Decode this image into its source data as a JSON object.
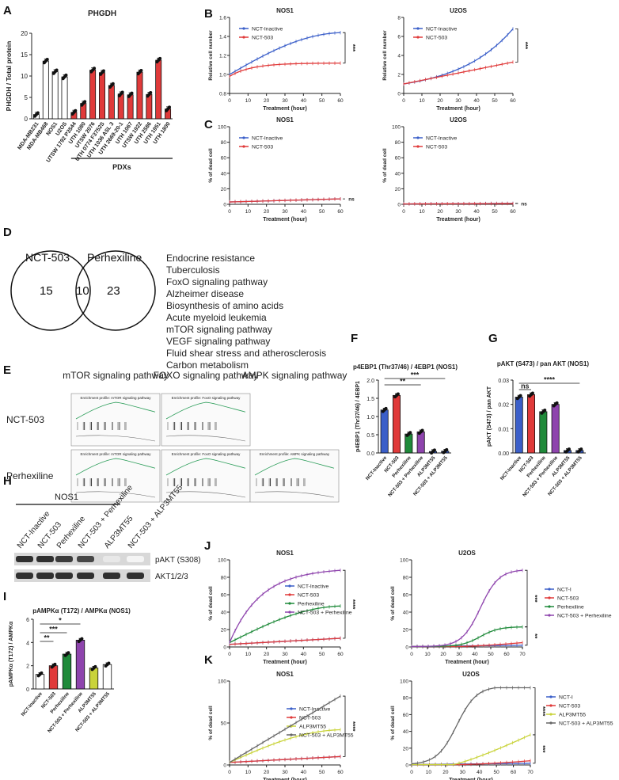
{
  "panels": [
    "A",
    "B",
    "C",
    "D",
    "E",
    "F",
    "G",
    "H",
    "I",
    "J",
    "K"
  ],
  "colors": {
    "blue": "#3b5fc9",
    "red": "#e03a3a",
    "green": "#1f8a3a",
    "purple": "#8e44ad",
    "yellow": "#c9d33a",
    "gray": "#666666",
    "white": "#ffffff"
  },
  "charts": {
    "A": {
      "type": "bar",
      "title": "PHGDH",
      "ylabel": "PHGDH / Total protein",
      "ylim": [
        0,
        20
      ],
      "yticks": [
        "0",
        "5",
        "10",
        "15",
        "20"
      ],
      "categories": [
        "MDA-MB231",
        "MDA-MB468",
        "NOS1",
        "U2OS",
        "UTSW 1792 P3544",
        "UTH 1080",
        "UTSW 2076",
        "UTH 0774 F3752S",
        "UTH 1036 ASL 3",
        "UTH 2669-20-1",
        "UTH 1067",
        "UTSW 1922",
        "UTH 2586",
        "UTH 1951",
        "UTH 1800"
      ],
      "values": [
        1.0,
        13.5,
        11.0,
        9.8,
        1.5,
        3.6,
        11.4,
        10.8,
        7.8,
        5.8,
        5.6,
        10.9,
        5.7,
        13.7,
        2.3
      ],
      "colorkeys": [
        "white",
        "white",
        "white",
        "white",
        "red",
        "red",
        "red",
        "red",
        "red",
        "red",
        "red",
        "red",
        "red",
        "red",
        "red"
      ],
      "bracket_label": "PDXs"
    },
    "B1": {
      "type": "line",
      "title": "NOS1",
      "ylabel": "Relative cell number",
      "xlabel": "Treatment (hour)",
      "xlim": [
        0,
        60
      ],
      "ylim": [
        0.8,
        1.6
      ],
      "xticks": [
        "0",
        "10",
        "20",
        "30",
        "40",
        "50",
        "60"
      ],
      "yticks": [
        "0.8",
        "1.0",
        "1.2",
        "1.4",
        "1.6"
      ],
      "series": [
        {
          "name": "NCT-Inactive",
          "colorkey": "blue",
          "start": 1.0,
          "end": 1.44,
          "shape": "rise"
        },
        {
          "name": "NCT-503",
          "colorkey": "red",
          "start": 0.98,
          "end": 1.12,
          "shape": "plateau"
        }
      ],
      "sig": "***"
    },
    "B2": {
      "type": "line",
      "title": "U2OS",
      "ylabel": "Relative cell number",
      "xlabel": "Treatment (hour)",
      "xlim": [
        0,
        60
      ],
      "ylim": [
        0,
        8
      ],
      "xticks": [
        "0",
        "10",
        "20",
        "30",
        "40",
        "50",
        "60"
      ],
      "yticks": [
        "0",
        "2",
        "4",
        "6",
        "8"
      ],
      "series": [
        {
          "name": "NCT-Inactive",
          "colorkey": "blue",
          "start": 1.0,
          "end": 6.8,
          "shape": "exp"
        },
        {
          "name": "NCT-503",
          "colorkey": "red",
          "start": 1.0,
          "end": 3.3,
          "shape": "linear"
        }
      ],
      "sig": "***"
    },
    "C1": {
      "type": "line",
      "title": "NOS1",
      "ylabel": "% of dead cell",
      "xlabel": "Treatment (hour)",
      "xlim": [
        0,
        60
      ],
      "ylim": [
        0,
        100
      ],
      "xticks": [
        "0",
        "10",
        "20",
        "30",
        "40",
        "50",
        "60"
      ],
      "yticks": [
        "0",
        "20",
        "40",
        "60",
        "80",
        "100"
      ],
      "series": [
        {
          "name": "NCT-Inactive",
          "colorkey": "blue",
          "start": 3,
          "end": 7,
          "shape": "linear"
        },
        {
          "name": "NCT-503",
          "colorkey": "red",
          "start": 3,
          "end": 7,
          "shape": "linear"
        }
      ],
      "sig": "ns"
    },
    "C2": {
      "type": "line",
      "title": "U2OS",
      "ylabel": "% of dead cell",
      "xlabel": "Treatment (hour)",
      "xlim": [
        0,
        60
      ],
      "ylim": [
        0,
        100
      ],
      "xticks": [
        "0",
        "10",
        "20",
        "30",
        "40",
        "50",
        "60"
      ],
      "yticks": [
        "0",
        "20",
        "40",
        "60",
        "80",
        "100"
      ],
      "series": [
        {
          "name": "NCT-Inactive",
          "colorkey": "blue",
          "start": 0.5,
          "end": 1.2,
          "shape": "linear"
        },
        {
          "name": "NCT-503",
          "colorkey": "red",
          "start": 0.5,
          "end": 1.0,
          "shape": "linear"
        }
      ],
      "sig": "ns"
    },
    "F": {
      "type": "bar",
      "title": "p4EBP1 (Thr37/46) / 4EBP1 (NOS1)",
      "ylabel": "p4EBP1 (Thr37/46) / 4EBP1",
      "ylim": [
        0,
        2.0
      ],
      "yticks": [
        "0.0",
        "0.5",
        "1.0",
        "1.5",
        "2.0"
      ],
      "categories": [
        "NCT-Inactive",
        "NCT-503",
        "Perhexiline",
        "NCT-503 + Perhexiline",
        "ALP3MT55",
        "NCT-503 + ALP3MT55"
      ],
      "values": [
        1.18,
        1.58,
        0.52,
        0.58,
        0.04,
        0.05
      ],
      "colorkeys": [
        "blue",
        "red",
        "green",
        "purple",
        "blue",
        "blue"
      ],
      "sig": [
        {
          "a": 0,
          "b": 3,
          "label": "**"
        },
        {
          "a": 0,
          "b": 5,
          "label": "***"
        }
      ]
    },
    "G": {
      "type": "bar",
      "title": "pAKT (S473) / pan AKT (NOS1)",
      "ylabel": "pAKT (S473) / pan AKT",
      "ylim": [
        0,
        0.03
      ],
      "yticks": [
        "0.00",
        "0.01",
        "0.02",
        "0.03"
      ],
      "categories": [
        "NCT-Inactive",
        "NCT-503",
        "Perhexiline",
        "NCT-503 + Perhexiline",
        "ALP3MT55",
        "NCT-503 + ALP3MT55"
      ],
      "values": [
        0.023,
        0.024,
        0.017,
        0.02,
        0.001,
        0.001
      ],
      "colorkeys": [
        "blue",
        "red",
        "green",
        "purple",
        "blue",
        "blue"
      ],
      "sig": [
        {
          "a": 0,
          "b": 1,
          "label": "ns"
        },
        {
          "a": 0,
          "b": 5,
          "label": "****"
        }
      ]
    },
    "I": {
      "type": "bar",
      "title": "pAMPKα (T172) / AMPKα (NOS1)",
      "ylabel": "pAMPKα (T172) / AMPKα",
      "ylim": [
        0,
        6
      ],
      "yticks": [
        "0",
        "2",
        "4",
        "6"
      ],
      "categories": [
        "NCT-Inactive",
        "NCT-503",
        "Perhexiline",
        "NCT-503 + Perhexiline",
        "ALP3MT55",
        "NCT-503 + ALP3MT55"
      ],
      "values": [
        1.25,
        2.0,
        3.0,
        4.2,
        1.8,
        2.1
      ],
      "colorkeys": [
        "white",
        "red",
        "green",
        "purple",
        "yellow",
        "white"
      ],
      "sig": [
        {
          "a": 0,
          "b": 1,
          "label": "**"
        },
        {
          "a": 0,
          "b": 2,
          "label": "***"
        },
        {
          "a": 0,
          "b": 3,
          "label": "*"
        }
      ]
    },
    "J1": {
      "type": "line",
      "title": "NOS1",
      "ylabel": "% of dead cell",
      "xlabel": "Treatment (hour)",
      "xlim": [
        0,
        60
      ],
      "ylim": [
        0,
        100
      ],
      "xticks": [
        "0",
        "10",
        "20",
        "30",
        "40",
        "50",
        "60"
      ],
      "yticks": [
        "0",
        "20",
        "40",
        "60",
        "80",
        "100"
      ],
      "series": [
        {
          "name": "NCT-Inactive",
          "colorkey": "blue",
          "start": 3,
          "end": 10,
          "shape": "linear"
        },
        {
          "name": "NCT-503",
          "colorkey": "red",
          "start": 3,
          "end": 10,
          "shape": "linear"
        },
        {
          "name": "Perhexiline",
          "colorkey": "green",
          "start": 5,
          "end": 47,
          "shape": "rise"
        },
        {
          "name": "NCT-503 + Perhexiline",
          "colorkey": "purple",
          "start": 5,
          "end": 88,
          "shape": "fast"
        }
      ],
      "sig": "****"
    },
    "J2": {
      "type": "line",
      "title": "U2OS",
      "ylabel": "% of dead cell",
      "xlabel": "Treatment (hour)",
      "xlim": [
        0,
        70
      ],
      "ylim": [
        0,
        100
      ],
      "xticks": [
        "0",
        "10",
        "20",
        "30",
        "40",
        "50",
        "60",
        "70"
      ],
      "yticks": [
        "0",
        "20",
        "40",
        "60",
        "80",
        "100"
      ],
      "series": [
        {
          "name": "NCT-I",
          "colorkey": "blue",
          "start": 0.5,
          "end": 2,
          "shape": "linear"
        },
        {
          "name": "NCT-503",
          "colorkey": "red",
          "start": 0.5,
          "end": 5,
          "shape": "late"
        },
        {
          "name": "Perhexiline",
          "colorkey": "green",
          "start": 0.5,
          "end": 23,
          "shape": "sig"
        },
        {
          "name": "NCT-503 + Perhexiline",
          "colorkey": "purple",
          "start": 0.5,
          "end": 88,
          "shape": "sig"
        }
      ],
      "sig": "***",
      "sig2": "**"
    },
    "K1": {
      "type": "line",
      "title": "NOS1",
      "ylabel": "% of dead cell",
      "xlabel": "Treatment (hour)",
      "xlim": [
        0,
        60
      ],
      "ylim": [
        0,
        100
      ],
      "xticks": [
        "0",
        "10",
        "20",
        "30",
        "40",
        "50",
        "60"
      ],
      "yticks": [
        "0",
        "50",
        "100"
      ],
      "series": [
        {
          "name": "NCT-Inactive",
          "colorkey": "blue",
          "start": 3,
          "end": 10,
          "shape": "linear"
        },
        {
          "name": "NCT-503",
          "colorkey": "red",
          "start": 3,
          "end": 10,
          "shape": "linear"
        },
        {
          "name": "ALP3MT55",
          "colorkey": "yellow",
          "start": 3,
          "end": 42,
          "shape": "rise"
        },
        {
          "name": "NCT-503 + ALP3MT55",
          "colorkey": "gray",
          "start": 3,
          "end": 82,
          "shape": "linear"
        }
      ],
      "sig": "****"
    },
    "K2": {
      "type": "line",
      "title": "U2OS",
      "ylabel": "% of dead cell",
      "xlabel": "Treatment (hour)",
      "xlim": [
        0,
        70
      ],
      "ylim": [
        0,
        100
      ],
      "xticks": [
        "0",
        "10",
        "20",
        "30",
        "40",
        "50",
        "60",
        "70"
      ],
      "yticks": [
        "0",
        "20",
        "40",
        "60",
        "80",
        "100"
      ],
      "series": [
        {
          "name": "NCT-I",
          "colorkey": "blue",
          "start": 0.5,
          "end": 2,
          "shape": "linear"
        },
        {
          "name": "NCT-503",
          "colorkey": "red",
          "start": 0.5,
          "end": 5,
          "shape": "late"
        },
        {
          "name": "ALP3MT55",
          "colorkey": "yellow",
          "start": 0.5,
          "end": 36,
          "shape": "late2"
        },
        {
          "name": "NCT-503 + ALP3MT55",
          "colorkey": "gray",
          "start": 0.5,
          "end": 92,
          "shape": "sig2"
        }
      ],
      "sig": "****",
      "sig2": "***"
    }
  },
  "venn": {
    "left_label": "NCT-503",
    "right_label": "Perhexiline",
    "left_count": "15",
    "overlap_count": "10",
    "right_count": "23",
    "pathways": [
      "Endocrine resistance",
      "Tuberculosis",
      "FoxO signaling pathway",
      "Alzheimer disease",
      "Biosynthesis of amino acids",
      "Acute myeloid leukemia",
      "mTOR signaling pathway",
      "VEGF signaling pathway",
      "Fluid shear stress and atherosclerosis",
      "Carbon metabolism"
    ]
  },
  "gsea": {
    "columns": [
      "mTOR signaling pathway",
      "FOXO signaling pathway",
      "AMPK signaling pathway"
    ],
    "rows": [
      "NCT-503",
      "Perhexiline"
    ],
    "plot_titles": [
      "Enrichment profile: mTOR signaling pathway",
      "Enrichment profile: FoxO signaling pathway",
      "Enrichment profile: AMPK signaling pathway"
    ]
  },
  "blot": {
    "header": "NOS1",
    "lanes": [
      "NCT-Inactive",
      "NCT-503",
      "Perhexiline",
      "NCT-503 + Perhexiline",
      "ALP3MT55",
      "NCT-503 + ALP3MT55"
    ],
    "bands": [
      "pAKT (S308)",
      "AKT1/2/3"
    ],
    "intensities": [
      [
        0.9,
        0.9,
        0.85,
        0.8,
        0.1,
        0.05
      ],
      [
        0.9,
        0.9,
        0.9,
        0.9,
        0.9,
        0.9
      ]
    ]
  }
}
